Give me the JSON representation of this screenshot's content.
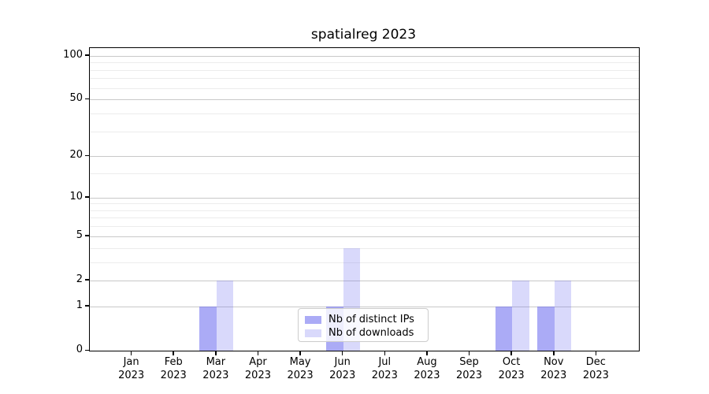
{
  "chart_data": {
    "type": "bar",
    "title": "spatialreg 2023",
    "categories": [
      "Jan",
      "Feb",
      "Mar",
      "Apr",
      "May",
      "Jun",
      "Jul",
      "Aug",
      "Sep",
      "Oct",
      "Nov",
      "Dec"
    ],
    "year_label": "2023",
    "series": [
      {
        "name": "Nb of distinct IPs",
        "color": "#6666ee",
        "alpha": 0.55,
        "values": [
          0,
          0,
          1,
          0,
          0,
          1,
          0,
          0,
          0,
          1,
          1,
          0
        ]
      },
      {
        "name": "Nb of downloads",
        "color": "#6666ee",
        "alpha": 0.25,
        "values": [
          0,
          0,
          2,
          0,
          0,
          4,
          0,
          0,
          0,
          2,
          2,
          0
        ]
      }
    ],
    "yscale": "log10(1+v)",
    "ylim": [
      0,
      113
    ],
    "y_major_ticks": [
      100,
      50,
      20,
      10,
      5,
      2,
      1,
      0
    ],
    "y_minor_gridlines": [
      3,
      4,
      6,
      7,
      8,
      9,
      15,
      30,
      40,
      60,
      70,
      80,
      90
    ],
    "grid": "on",
    "legend_position": "lower center",
    "bar_width_fraction": 0.4
  },
  "colors": {
    "bar_base": "#6666ee",
    "major_grid": "#c8c8c8",
    "minor_grid": "#ececec",
    "axis": "#000000",
    "legend_border": "#cccccc"
  }
}
